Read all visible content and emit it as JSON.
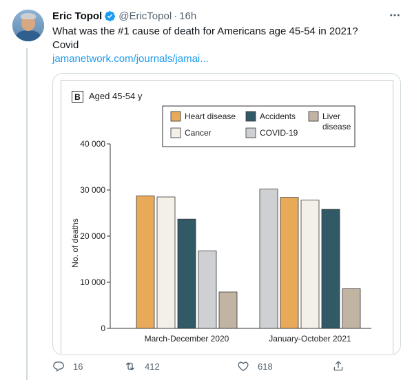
{
  "tweet": {
    "display_name": "Eric Topol",
    "handle": "@EricTopol",
    "separator": "·",
    "time": "16h",
    "text_line1": "What was the #1 cause of death for Americans age 45-54 in 2021?",
    "text_line2": "Covid",
    "link": "jamanetwork.com/journals/jamai..."
  },
  "actions": {
    "replies": "16",
    "retweets": "412",
    "likes": "618"
  },
  "icons": {
    "verified": "verified-badge-icon",
    "more": "more-icon",
    "reply": "reply-icon",
    "retweet": "retweet-icon",
    "like": "heart-icon",
    "share": "share-icon"
  },
  "colors": {
    "link": "#1d9bf0",
    "verified": "#1d9bf0",
    "muted": "#536471"
  },
  "figure": {
    "panel_letter": "B",
    "panel_title": "Aged 45-54 y"
  },
  "chart_data": {
    "type": "bar",
    "ylabel": "No. of deaths",
    "ylim": [
      0,
      40000
    ],
    "yticks": [
      {
        "value": 0,
        "label": "0"
      },
      {
        "value": 10000,
        "label": "10 000"
      },
      {
        "value": 20000,
        "label": "20 000"
      },
      {
        "value": 30000,
        "label": "30 000"
      },
      {
        "value": 40000,
        "label": "40 000"
      }
    ],
    "legend": [
      {
        "label": "Heart disease",
        "color": "#e8a959"
      },
      {
        "label": "Accidents",
        "color": "#325a66"
      },
      {
        "label": "Liver disease",
        "color": "#c1b4a2"
      },
      {
        "label": "Cancer",
        "color": "#f3f0e7"
      },
      {
        "label": "COVID-19",
        "color": "#cfd0d3"
      }
    ],
    "groups": [
      {
        "label": "March-December 2020",
        "bars": [
          {
            "series": "Heart disease",
            "value": 28700,
            "color": "#e8a959"
          },
          {
            "series": "Cancer",
            "value": 28500,
            "color": "#f3f0e7"
          },
          {
            "series": "Accidents",
            "value": 23700,
            "color": "#325a66"
          },
          {
            "series": "COVID-19",
            "value": 16800,
            "color": "#cfd0d3"
          },
          {
            "series": "Liver disease",
            "value": 7900,
            "color": "#c1b4a2"
          }
        ]
      },
      {
        "label": "January-October 2021",
        "bars": [
          {
            "series": "COVID-19",
            "value": 30200,
            "color": "#cfd0d3"
          },
          {
            "series": "Heart disease",
            "value": 28400,
            "color": "#e8a959"
          },
          {
            "series": "Cancer",
            "value": 27800,
            "color": "#f3f0e7"
          },
          {
            "series": "Accidents",
            "value": 25800,
            "color": "#325a66"
          },
          {
            "series": "Liver disease",
            "value": 8600,
            "color": "#c1b4a2"
          }
        ]
      }
    ]
  }
}
